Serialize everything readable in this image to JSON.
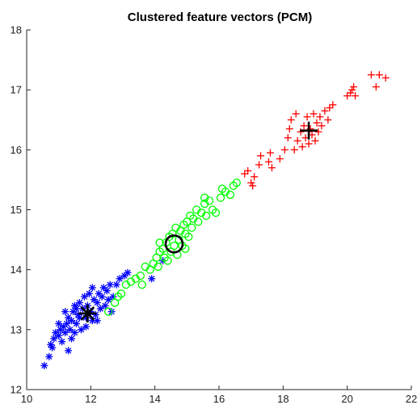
{
  "chart_data": {
    "type": "scatter",
    "title": "Clustered feature vectors (PCM)",
    "xlabel": "",
    "ylabel": "",
    "xlim": [
      10,
      22
    ],
    "ylim": [
      12,
      18
    ],
    "xticks": [
      "10",
      "12",
      "14",
      "16",
      "18",
      "20",
      "22"
    ],
    "yticks": [
      "12",
      "13",
      "14",
      "15",
      "16",
      "17",
      "18"
    ],
    "grid": false,
    "legend": "none",
    "series": [
      {
        "marker": "asterisk",
        "color": "#0000ff",
        "points": [
          [
            10.55,
            12.4
          ],
          [
            10.7,
            12.55
          ],
          [
            10.75,
            12.75
          ],
          [
            10.85,
            12.85
          ],
          [
            10.9,
            12.95
          ],
          [
            10.8,
            12.7
          ],
          [
            11.0,
            12.9
          ],
          [
            11.05,
            13.0
          ],
          [
            11.1,
            12.8
          ],
          [
            11.15,
            13.05
          ],
          [
            11.2,
            12.95
          ],
          [
            11.25,
            13.1
          ],
          [
            11.3,
            12.65
          ],
          [
            11.3,
            13.2
          ],
          [
            11.35,
            13.0
          ],
          [
            11.4,
            13.15
          ],
          [
            11.45,
            13.3
          ],
          [
            11.5,
            12.95
          ],
          [
            11.5,
            13.4
          ],
          [
            11.55,
            13.1
          ],
          [
            11.6,
            13.25
          ],
          [
            11.65,
            13.45
          ],
          [
            11.7,
            13.0
          ],
          [
            11.75,
            13.35
          ],
          [
            11.8,
            13.55
          ],
          [
            11.85,
            13.2
          ],
          [
            11.9,
            13.4
          ],
          [
            11.95,
            13.6
          ],
          [
            12.0,
            13.3
          ],
          [
            12.05,
            13.7
          ],
          [
            12.1,
            13.5
          ],
          [
            12.15,
            13.25
          ],
          [
            12.2,
            13.45
          ],
          [
            12.25,
            13.6
          ],
          [
            12.3,
            13.35
          ],
          [
            12.35,
            13.55
          ],
          [
            12.4,
            13.7
          ],
          [
            12.45,
            13.4
          ],
          [
            12.5,
            13.65
          ],
          [
            12.55,
            13.5
          ],
          [
            12.6,
            13.75
          ],
          [
            12.65,
            13.3
          ],
          [
            12.7,
            13.55
          ],
          [
            12.8,
            13.75
          ],
          [
            12.9,
            13.85
          ],
          [
            13.05,
            13.9
          ],
          [
            13.15,
            13.95
          ],
          [
            12.2,
            13.15
          ],
          [
            11.4,
            12.85
          ],
          [
            11.0,
            13.1
          ],
          [
            11.2,
            13.3
          ],
          [
            11.65,
            13.2
          ],
          [
            13.9,
            13.85
          ],
          [
            14.25,
            14.15
          ],
          [
            12.05,
            13.15
          ],
          [
            11.85,
            13.05
          ],
          [
            11.55,
            13.35
          ]
        ]
      },
      {
        "marker": "circle",
        "color": "#00ff00",
        "points": [
          [
            12.55,
            13.3
          ],
          [
            12.75,
            13.45
          ],
          [
            12.85,
            13.55
          ],
          [
            12.95,
            13.6
          ],
          [
            13.1,
            13.75
          ],
          [
            13.25,
            13.8
          ],
          [
            13.4,
            13.85
          ],
          [
            13.55,
            13.9
          ],
          [
            13.7,
            14.05
          ],
          [
            13.85,
            14.0
          ],
          [
            13.95,
            14.1
          ],
          [
            14.05,
            14.2
          ],
          [
            14.1,
            14.05
          ],
          [
            14.15,
            14.3
          ],
          [
            14.25,
            14.35
          ],
          [
            14.3,
            14.2
          ],
          [
            14.35,
            14.45
          ],
          [
            14.4,
            14.15
          ],
          [
            14.45,
            14.55
          ],
          [
            14.5,
            14.3
          ],
          [
            14.55,
            14.6
          ],
          [
            14.6,
            14.4
          ],
          [
            14.65,
            14.7
          ],
          [
            14.7,
            14.25
          ],
          [
            14.75,
            14.5
          ],
          [
            14.8,
            14.65
          ],
          [
            14.85,
            14.4
          ],
          [
            14.9,
            14.75
          ],
          [
            14.95,
            14.6
          ],
          [
            15.0,
            14.8
          ],
          [
            15.05,
            14.55
          ],
          [
            15.1,
            14.9
          ],
          [
            15.15,
            14.7
          ],
          [
            15.2,
            14.85
          ],
          [
            15.3,
            15.0
          ],
          [
            15.35,
            14.8
          ],
          [
            15.45,
            14.95
          ],
          [
            15.55,
            15.1
          ],
          [
            15.6,
            14.9
          ],
          [
            15.7,
            15.15
          ],
          [
            15.8,
            15.0
          ],
          [
            15.9,
            14.95
          ],
          [
            16.05,
            15.2
          ],
          [
            16.1,
            15.35
          ],
          [
            16.2,
            15.3
          ],
          [
            16.35,
            15.25
          ],
          [
            16.45,
            15.4
          ],
          [
            16.55,
            15.45
          ],
          [
            14.15,
            14.45
          ],
          [
            13.6,
            13.75
          ],
          [
            14.95,
            14.35
          ],
          [
            15.55,
            15.2
          ]
        ]
      },
      {
        "marker": "plus",
        "color": "#ff0000",
        "points": [
          [
            16.8,
            15.6
          ],
          [
            16.9,
            15.65
          ],
          [
            17.0,
            15.45
          ],
          [
            17.05,
            15.4
          ],
          [
            17.1,
            15.55
          ],
          [
            17.25,
            15.75
          ],
          [
            17.3,
            15.9
          ],
          [
            17.55,
            15.8
          ],
          [
            17.6,
            15.95
          ],
          [
            17.9,
            15.85
          ],
          [
            18.05,
            16.0
          ],
          [
            18.15,
            16.2
          ],
          [
            18.2,
            16.35
          ],
          [
            18.25,
            16.5
          ],
          [
            18.35,
            16.0
          ],
          [
            18.45,
            16.15
          ],
          [
            18.55,
            16.3
          ],
          [
            18.6,
            16.05
          ],
          [
            18.65,
            16.4
          ],
          [
            18.7,
            16.2
          ],
          [
            18.75,
            16.55
          ],
          [
            18.8,
            16.1
          ],
          [
            18.85,
            16.35
          ],
          [
            18.9,
            16.25
          ],
          [
            18.95,
            16.6
          ],
          [
            19.0,
            16.15
          ],
          [
            19.05,
            16.45
          ],
          [
            19.1,
            16.3
          ],
          [
            19.15,
            16.55
          ],
          [
            19.2,
            16.4
          ],
          [
            19.3,
            16.65
          ],
          [
            19.4,
            16.5
          ],
          [
            19.45,
            16.7
          ],
          [
            19.55,
            16.75
          ],
          [
            20.0,
            16.9
          ],
          [
            20.1,
            16.95
          ],
          [
            20.15,
            17.0
          ],
          [
            20.2,
            17.05
          ],
          [
            20.25,
            16.9
          ],
          [
            20.75,
            17.25
          ],
          [
            20.9,
            17.05
          ],
          [
            21.0,
            17.25
          ],
          [
            21.2,
            17.2
          ],
          [
            18.4,
            16.6
          ],
          [
            17.65,
            15.7
          ]
        ]
      }
    ],
    "centroids": [
      {
        "marker": "asterisk",
        "color": "#000000",
        "x": 11.9,
        "y": 13.27
      },
      {
        "marker": "circle",
        "color": "#000000",
        "x": 14.6,
        "y": 14.43
      },
      {
        "marker": "plus",
        "color": "#000000",
        "x": 18.8,
        "y": 16.32
      }
    ]
  }
}
